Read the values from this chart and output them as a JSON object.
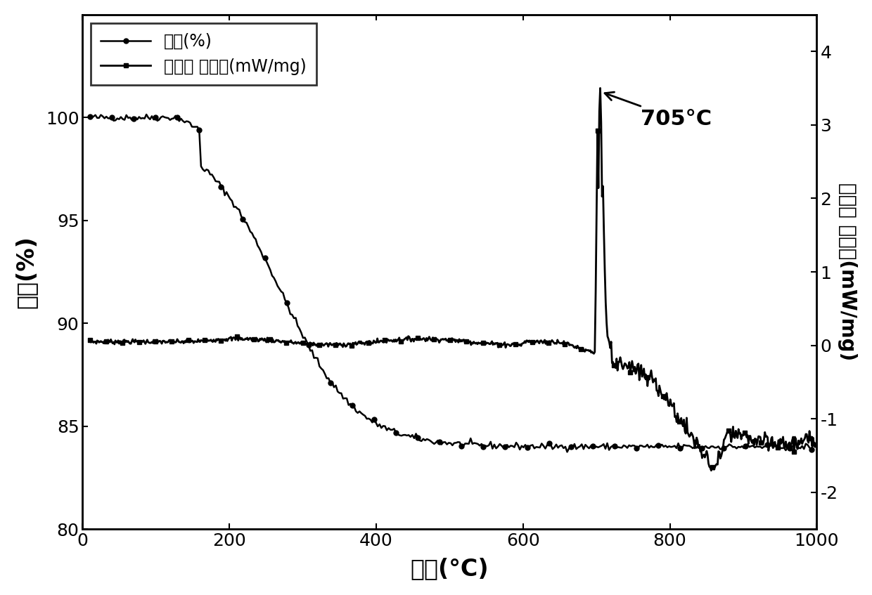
{
  "tg_label": "热重(%)",
  "dsc_label": "差示扫 描量热(mW/mg)",
  "xlabel": "温度(°C)",
  "ylabel_left": "热重(%)",
  "ylabel_right": "差示扫 描量热(mW/mg)",
  "annotation_text": "705°C",
  "xlim": [
    0,
    1000
  ],
  "ylim_left": [
    80,
    105
  ],
  "ylim_right": [
    -2.5,
    4.5
  ],
  "yticks_left": [
    80,
    85,
    90,
    95,
    100
  ],
  "yticks_right": [
    -2,
    -1,
    0,
    1,
    2,
    3,
    4
  ],
  "xticks": [
    0,
    200,
    400,
    600,
    800,
    1000
  ],
  "bg_color": "#ffffff",
  "line_color": "#000000"
}
